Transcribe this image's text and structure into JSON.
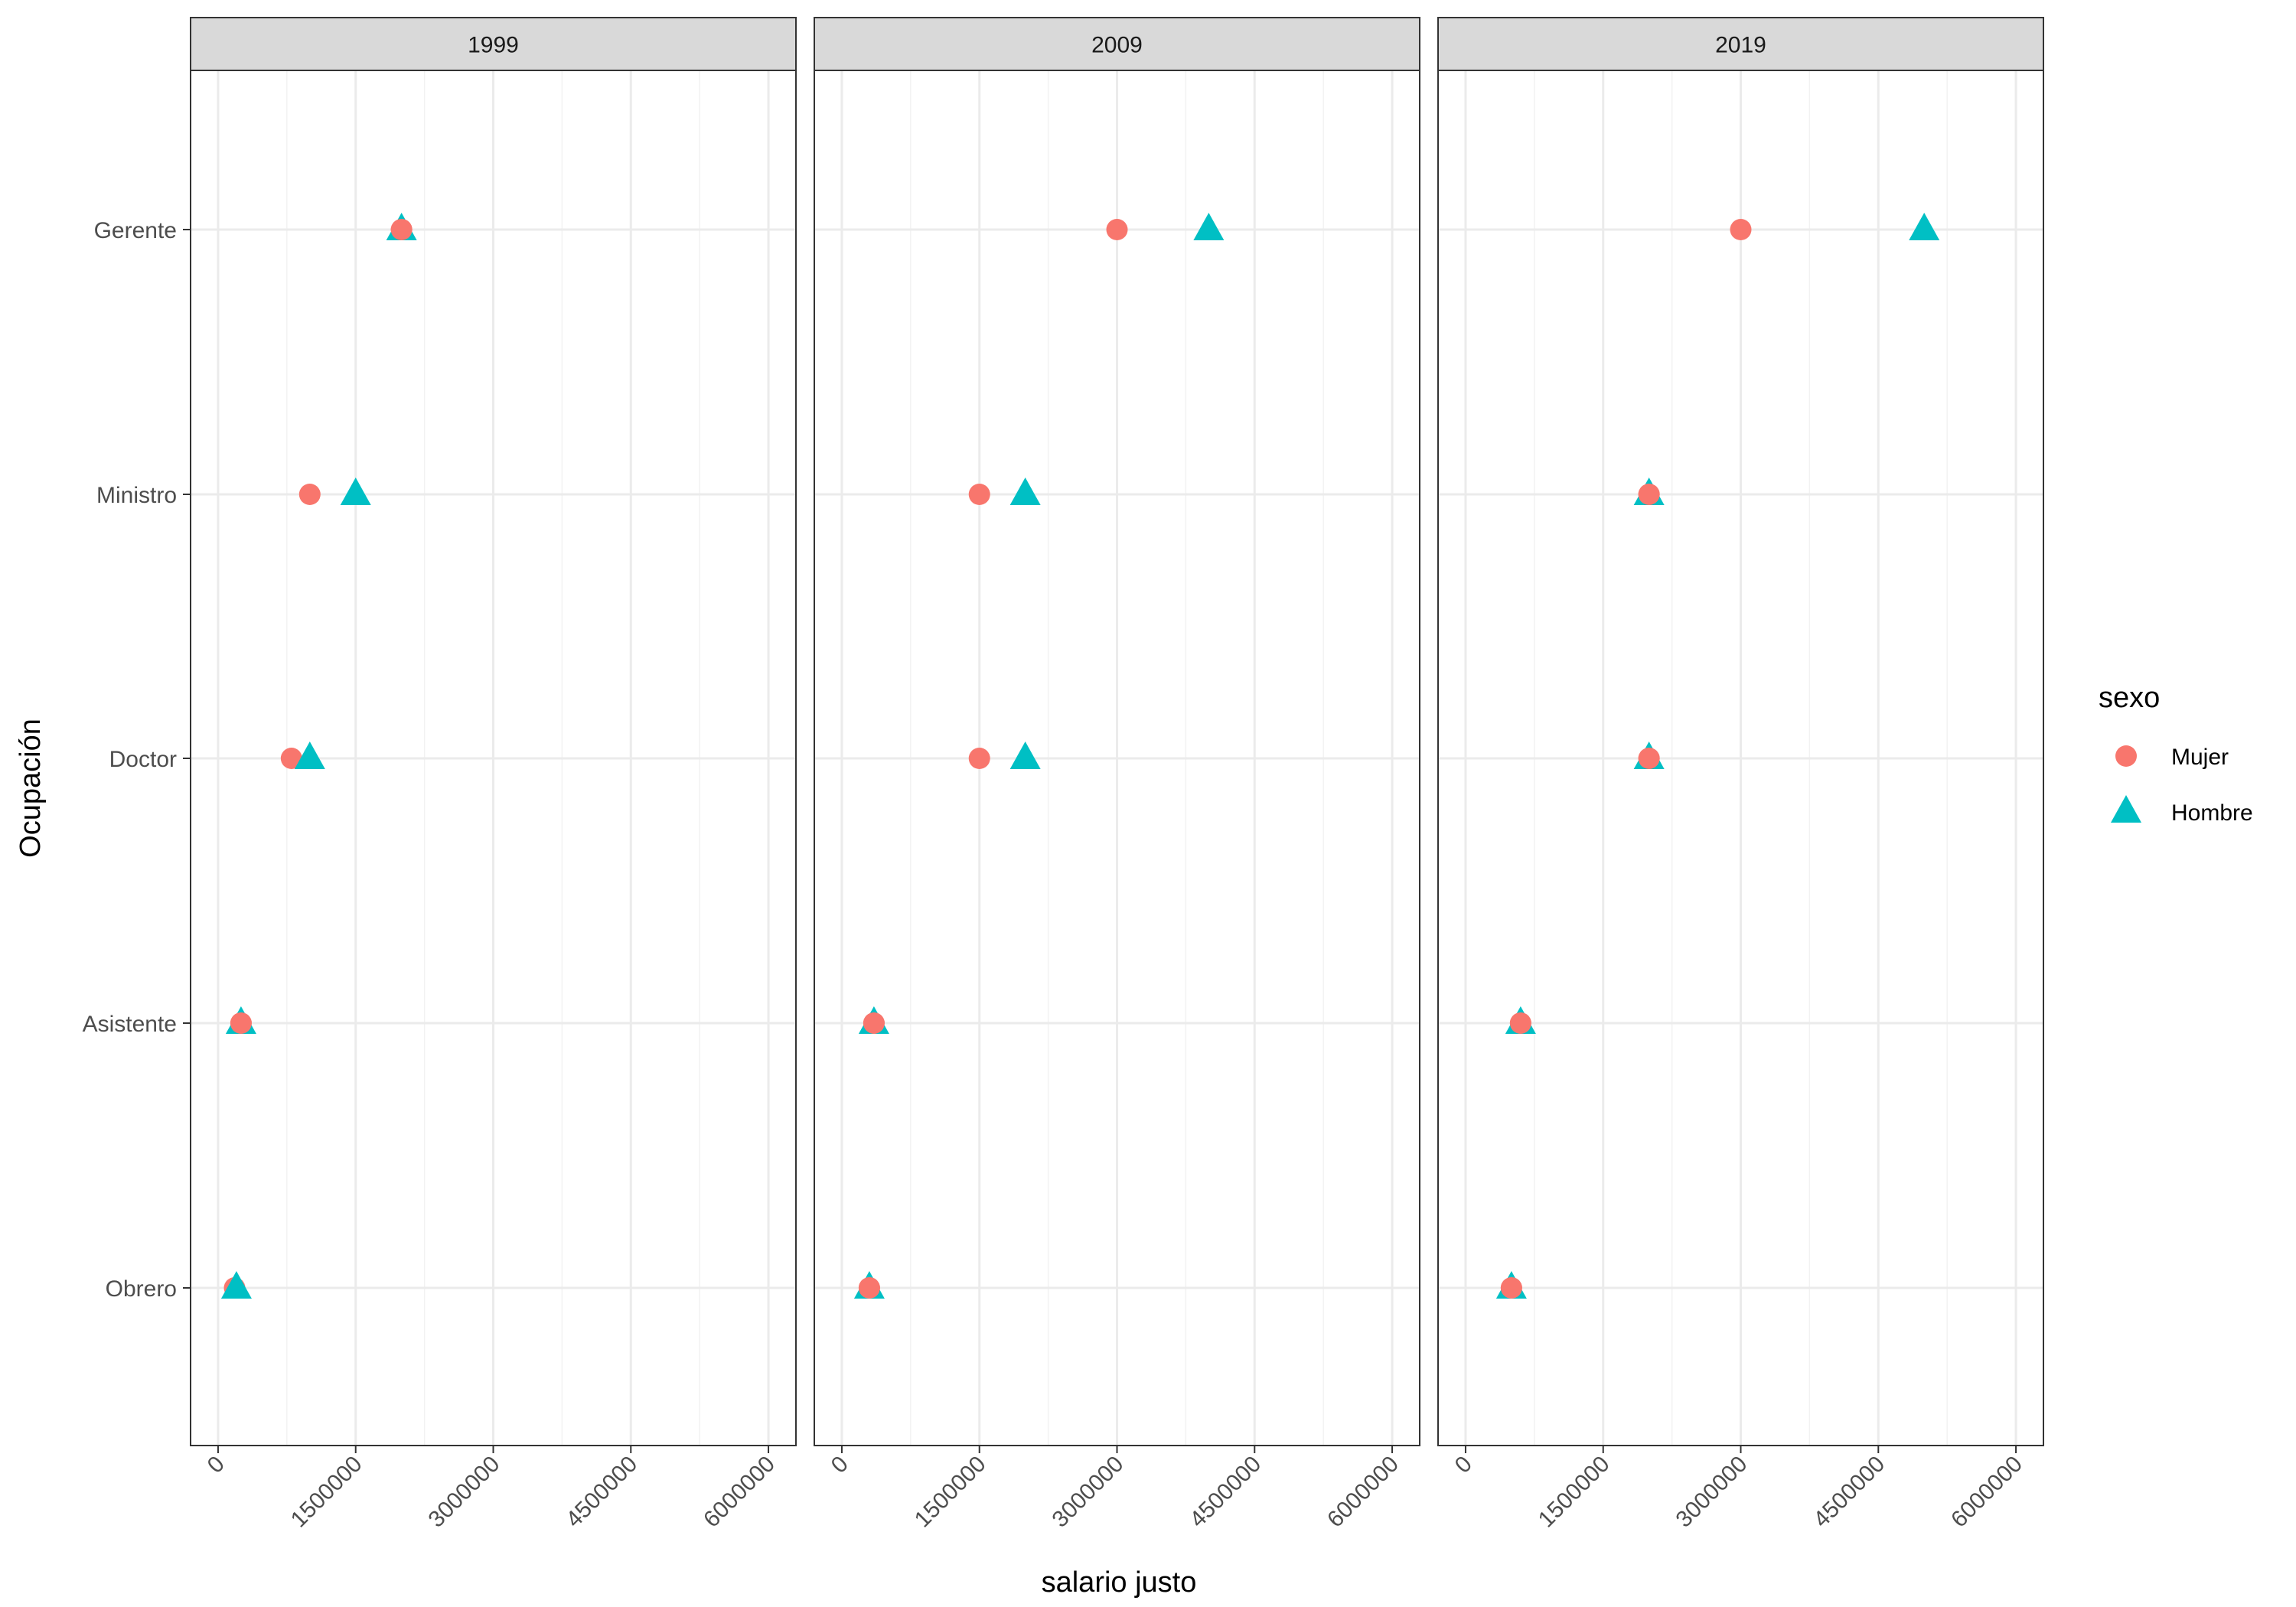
{
  "chart_data": {
    "type": "scatter",
    "facets": [
      "1999",
      "2009",
      "2019"
    ],
    "categories": [
      "Gerente",
      "Ministro",
      "Doctor",
      "Asistente",
      "Obrero"
    ],
    "xlabel": "salario justo",
    "ylabel": "Ocupación",
    "xlim": [
      -300000,
      6300000
    ],
    "xticks": [
      0,
      1500000,
      3000000,
      4500000,
      6000000
    ],
    "xtick_labels": [
      "0",
      "1500000",
      "3000000",
      "4500000",
      "6000000"
    ],
    "grid": true,
    "legend": {
      "title": "sexo",
      "position": "right",
      "entries": [
        {
          "label": "Mujer",
          "shape": "circle",
          "color": "#F8766D"
        },
        {
          "label": "Hombre",
          "shape": "triangle",
          "color": "#00BFC4"
        }
      ]
    },
    "series": [
      {
        "name": "Mujer",
        "shape": "circle",
        "color": "#F8766D",
        "values": {
          "1999": {
            "Gerente": 2000000,
            "Ministro": 1000000,
            "Doctor": 800000,
            "Asistente": 250000,
            "Obrero": 180000
          },
          "2009": {
            "Gerente": 3000000,
            "Ministro": 1500000,
            "Doctor": 1500000,
            "Asistente": 350000,
            "Obrero": 300000
          },
          "2019": {
            "Gerente": 3000000,
            "Ministro": 2000000,
            "Doctor": 2000000,
            "Asistente": 600000,
            "Obrero": 500000
          }
        }
      },
      {
        "name": "Hombre",
        "shape": "triangle",
        "color": "#00BFC4",
        "values": {
          "1999": {
            "Gerente": 2000000,
            "Ministro": 1500000,
            "Doctor": 1000000,
            "Asistente": 250000,
            "Obrero": 200000
          },
          "2009": {
            "Gerente": 4000000,
            "Ministro": 2000000,
            "Doctor": 2000000,
            "Asistente": 350000,
            "Obrero": 300000
          },
          "2019": {
            "Gerente": 5000000,
            "Ministro": 2000000,
            "Doctor": 2000000,
            "Asistente": 600000,
            "Obrero": 500000
          }
        }
      }
    ]
  }
}
